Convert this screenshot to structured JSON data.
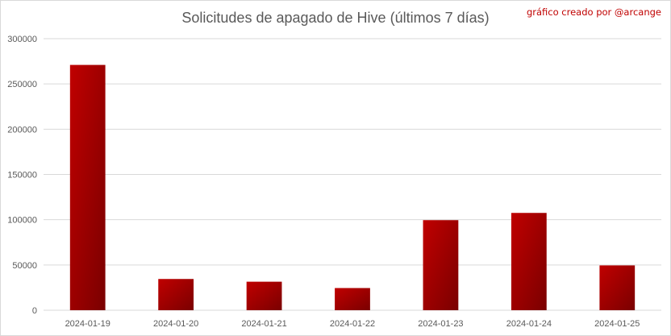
{
  "chart_data": {
    "type": "bar",
    "title": "Solicitudes de apagado de Hive (últimos 7 días)",
    "annotation": "gráfico creado por @arcange",
    "categories": [
      "2024-01-19",
      "2024-01-20",
      "2024-01-21",
      "2024-01-22",
      "2024-01-23",
      "2024-01-24",
      "2024-01-25"
    ],
    "values": [
      271000,
      34500,
      31500,
      24500,
      99500,
      107500,
      49500
    ],
    "y_ticks": [
      "0",
      "50000",
      "100000",
      "150000",
      "200000",
      "250000",
      "300000"
    ],
    "ylim": [
      0,
      300000
    ],
    "grid": true,
    "legend": "none",
    "colors": {
      "bar_top": "#c00000",
      "bar_bottom": "#7a0000",
      "grid": "#d9d9d9",
      "text": "#595959",
      "annotation": "#c00000"
    }
  }
}
